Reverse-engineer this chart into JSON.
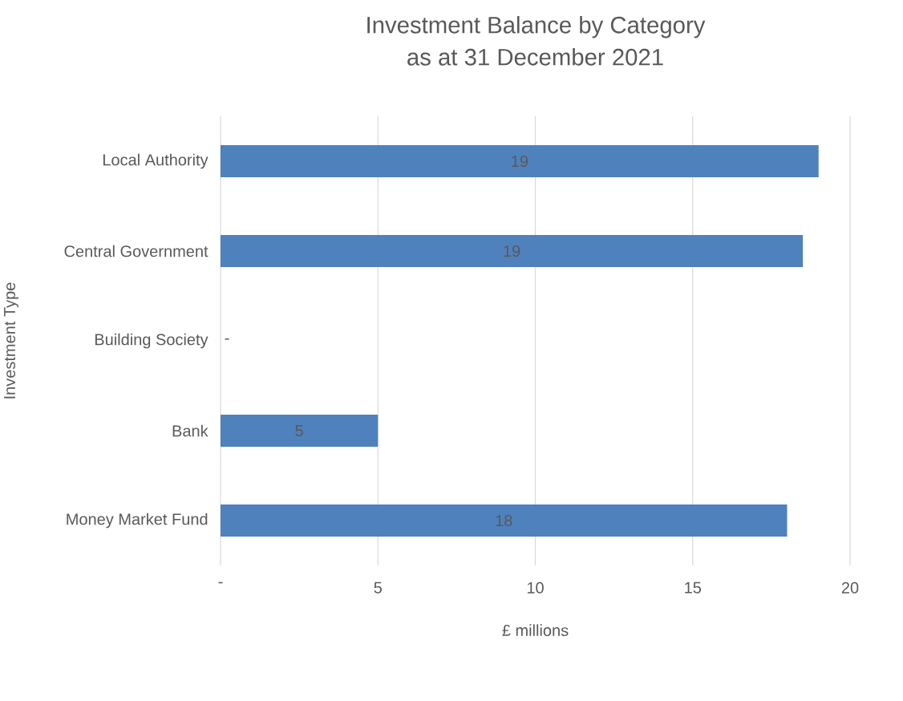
{
  "chart_data": {
    "type": "bar",
    "orientation": "horizontal",
    "title": "Investment Balance by Category",
    "subtitle": "as at 31 December 2021",
    "xlabel": "£ millions",
    "ylabel": "Investment Type",
    "categories": [
      "Local Authority",
      "Central Government",
      "Building Society",
      "Bank",
      "Money Market Fund"
    ],
    "values": [
      19,
      18.5,
      0,
      5,
      18
    ],
    "value_labels": [
      "19",
      "19",
      "-",
      "5",
      "18"
    ],
    "color": "#4f81bd",
    "xlim": [
      0,
      20
    ],
    "xticks": [
      {
        "value": 0,
        "label": "-"
      },
      5,
      10,
      15,
      20
    ],
    "grid": "x"
  }
}
